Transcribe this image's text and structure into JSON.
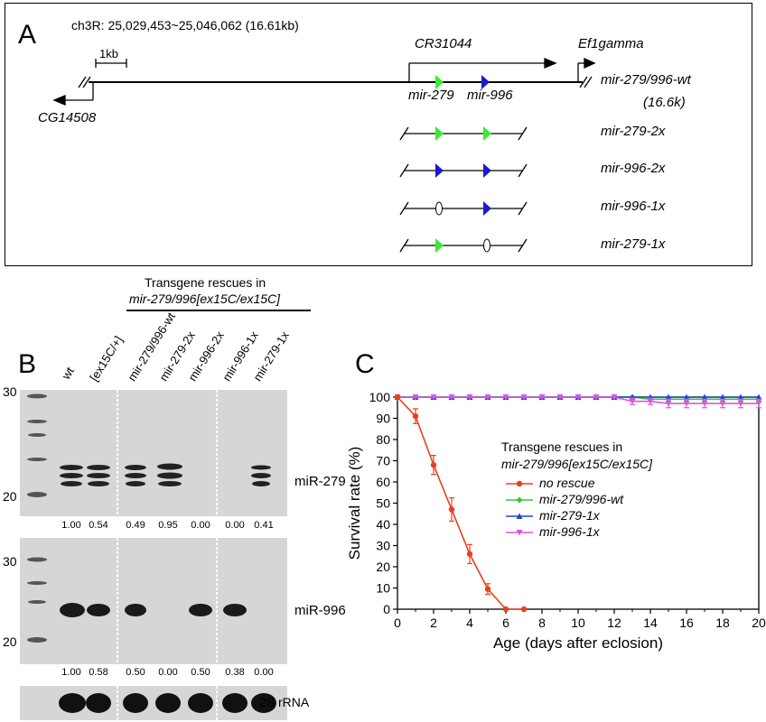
{
  "panelA": {
    "letter": "A",
    "coords": "ch3R: 25,029,453~25,046,062 (16.61kb)",
    "scale": "1kb",
    "gene_cr": "CR31044",
    "gene_ef": "Ef1gamma",
    "gene_cg": "CG14508",
    "mir279": "mir-279",
    "mir996": "mir-996",
    "constructs": [
      {
        "name": "mir-279/996-wt",
        "sub": "(16.6k)"
      },
      {
        "name": "mir-279-2x"
      },
      {
        "name": "mir-996-2x"
      },
      {
        "name": "mir-996-1x"
      },
      {
        "name": "mir-279-1x"
      }
    ]
  },
  "panelB": {
    "letter": "B",
    "header1": "Transgene rescues in",
    "header2": "mir-279/996[ex15C/ex15C]",
    "lanes": [
      "wt",
      "[ex15C/+]",
      "mir-279/996-wt",
      "mir-279-2x",
      "mir-996-2x",
      "mir-996-1x",
      "mir-279-1x"
    ],
    "marker_top": [
      "30",
      "20"
    ],
    "marker_mid": [
      "30",
      "20"
    ],
    "probe1": "miR-279",
    "probe2": "miR-996",
    "probe3": "2S rRNA",
    "quant_279": [
      "1.00",
      "0.54",
      "0.49",
      "0.95",
      "0.00",
      "0.00",
      "0.41"
    ],
    "quant_996": [
      "1.00",
      "0.58",
      "0.50",
      "0.00",
      "0.50",
      "0.38",
      "0.00"
    ]
  },
  "panelC": {
    "letter": "C"
  },
  "chart_data": {
    "type": "line",
    "xlabel": "Age (days after eclosion)",
    "ylabel": "Survival rate (%)",
    "xlim": [
      0,
      20
    ],
    "ylim": [
      0,
      100
    ],
    "xticks": [
      0,
      2,
      4,
      6,
      8,
      10,
      12,
      14,
      16,
      18,
      20
    ],
    "yticks": [
      0,
      10,
      20,
      30,
      40,
      50,
      60,
      70,
      80,
      90,
      100
    ],
    "legend_title1": "Transgene rescues in",
    "legend_title2": "mir-279/996[ex15C/ex15C]",
    "series": [
      {
        "name": "no rescue",
        "color": "#e8401c",
        "marker": "circle",
        "x": [
          0,
          1,
          2,
          3,
          4,
          5,
          6,
          7
        ],
        "y": [
          100,
          91,
          68,
          47,
          26,
          9.5,
          0,
          0
        ],
        "err": [
          0,
          3.5,
          4.5,
          5.5,
          4.5,
          2.5,
          0,
          0
        ]
      },
      {
        "name": "mir-279/996-wt",
        "color": "#33cc33",
        "marker": "diamond",
        "x": [
          0,
          1,
          2,
          3,
          4,
          5,
          6,
          7,
          8,
          9,
          10,
          11,
          12,
          13,
          14,
          15,
          16,
          17,
          18,
          19,
          20
        ],
        "y": [
          100,
          100,
          100,
          100,
          100,
          100,
          100,
          100,
          100,
          100,
          100,
          100,
          100,
          100,
          99,
          99,
          99,
          99,
          99,
          99,
          99
        ]
      },
      {
        "name": "mir-279-1x",
        "color": "#2244cc",
        "marker": "triangle-up",
        "x": [
          0,
          1,
          2,
          3,
          4,
          5,
          6,
          7,
          8,
          9,
          10,
          11,
          12,
          13,
          14,
          15,
          16,
          17,
          18,
          19,
          20
        ],
        "y": [
          100,
          100,
          100,
          100,
          100,
          100,
          100,
          100,
          100,
          100,
          100,
          100,
          100,
          100,
          100,
          100,
          100,
          100,
          100,
          100,
          100
        ]
      },
      {
        "name": "mir-996-1x",
        "color": "#dd55dd",
        "marker": "triangle-down",
        "x": [
          0,
          1,
          2,
          3,
          4,
          5,
          6,
          7,
          8,
          9,
          10,
          11,
          12,
          13,
          14,
          15,
          16,
          17,
          18,
          19,
          20
        ],
        "y": [
          100,
          100,
          100,
          100,
          100,
          100,
          100,
          100,
          100,
          100,
          100,
          100,
          100,
          98,
          98,
          97,
          97,
          97,
          97,
          97,
          97
        ],
        "err": [
          0,
          0,
          0,
          0,
          0,
          0,
          0,
          0,
          0,
          0,
          0,
          0,
          0,
          1.5,
          1.5,
          2,
          2,
          2,
          2,
          2,
          2
        ]
      }
    ]
  }
}
